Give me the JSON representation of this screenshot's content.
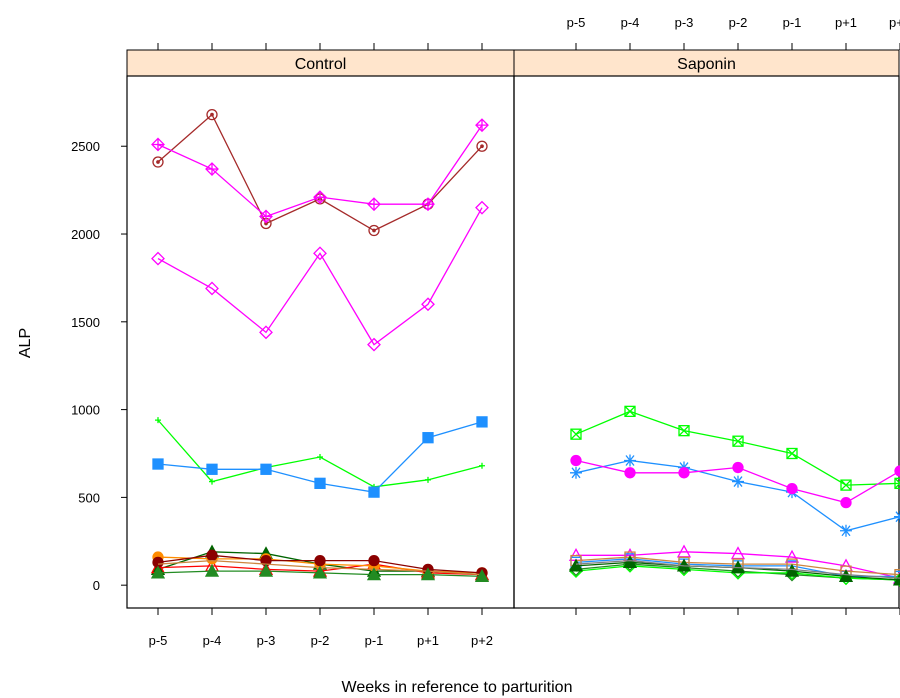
{
  "chart_data": {
    "type": "line",
    "xlabel": "Weeks in reference to parturition",
    "ylabel": "ALP",
    "categories": [
      "p-5",
      "p-4",
      "p-3",
      "p-2",
      "p-1",
      "p+1",
      "p+2"
    ],
    "ylim": [
      -130,
      2900
    ],
    "yticks": [
      0,
      500,
      1000,
      1500,
      2000,
      2500
    ],
    "grid": false,
    "panels": [
      {
        "name": "Control",
        "series": [
          {
            "color": "#a52a2a",
            "marker": "circle-dot",
            "values": [
              2410,
              2680,
              2060,
              2200,
              2020,
              2170,
              2500
            ]
          },
          {
            "color": "#ff00ff",
            "marker": "diamond-plus",
            "values": [
              2510,
              2370,
              2100,
              2210,
              2170,
              2170,
              2620
            ]
          },
          {
            "color": "#ff00ff",
            "marker": "diamond",
            "values": [
              1860,
              1690,
              1440,
              1890,
              1370,
              1600,
              2150
            ]
          },
          {
            "color": "#00ff00",
            "marker": "plus",
            "values": [
              940,
              590,
              670,
              730,
              560,
              600,
              680
            ]
          },
          {
            "color": "#1e90ff",
            "marker": "square-filled",
            "values": [
              690,
              660,
              660,
              580,
              530,
              840,
              930
            ]
          },
          {
            "color": "#006400",
            "marker": "triangle-filled",
            "values": [
              90,
              190,
              180,
              120,
              80,
              80,
              60
            ]
          },
          {
            "color": "#ff0000",
            "marker": "triangle",
            "values": [
              100,
              110,
              90,
              80,
              120,
              70,
              60
            ]
          },
          {
            "color": "#ff8c00",
            "marker": "circle-filled",
            "values": [
              160,
              150,
              150,
              120,
              110,
              80,
              70
            ]
          },
          {
            "color": "#8b0000",
            "marker": "circle-filled",
            "values": [
              130,
              170,
              140,
              140,
              140,
              90,
              70
            ]
          },
          {
            "color": "#cd853f",
            "marker": "none",
            "values": [
              120,
              140,
              120,
              100,
              90,
              80,
              60
            ]
          },
          {
            "color": "#228b22",
            "marker": "triangle-filled",
            "values": [
              70,
              80,
              80,
              70,
              60,
              60,
              50
            ]
          }
        ]
      },
      {
        "name": "Saponin",
        "series": [
          {
            "color": "#00ff00",
            "marker": "square-x",
            "values": [
              860,
              990,
              880,
              820,
              750,
              570,
              580
            ]
          },
          {
            "color": "#1e90ff",
            "marker": "asterisk",
            "values": [
              640,
              710,
              670,
              590,
              530,
              310,
              390
            ]
          },
          {
            "color": "#ff00ff",
            "marker": "circle-filled",
            "values": [
              710,
              640,
              640,
              670,
              550,
              470,
              650
            ]
          },
          {
            "color": "#ff00ff",
            "marker": "triangle",
            "values": [
              170,
              170,
              190,
              180,
              160,
              110,
              40
            ]
          },
          {
            "color": "#1e90ff",
            "marker": "square",
            "values": [
              130,
              150,
              120,
              110,
              110,
              50,
              50
            ]
          },
          {
            "color": "#cd853f",
            "marker": "square",
            "values": [
              140,
              160,
              130,
              120,
              120,
              80,
              60
            ]
          },
          {
            "color": "#228b22",
            "marker": "diamond",
            "values": [
              90,
              120,
              100,
              80,
              60,
              40,
              30
            ]
          },
          {
            "color": "#00ff00",
            "marker": "diamond",
            "values": [
              80,
              110,
              90,
              70,
              70,
              40,
              30
            ]
          },
          {
            "color": "#006400",
            "marker": "triangle-filled",
            "values": [
              110,
              130,
              110,
              100,
              80,
              50,
              30
            ]
          },
          {
            "color": "#808080",
            "marker": "none",
            "values": [
              120,
              140,
              110,
              100,
              90,
              60,
              40
            ]
          }
        ]
      }
    ]
  }
}
